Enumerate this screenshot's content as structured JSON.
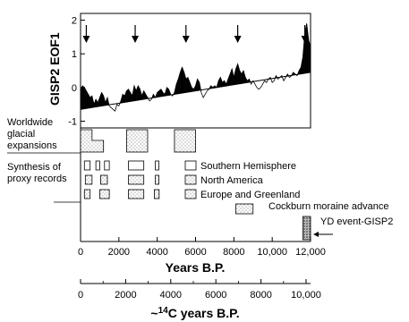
{
  "chart_data": [
    {
      "type": "line",
      "ylabel": "GISP2 EOF1",
      "xlabel": "Years B.P.",
      "xlim": [
        0,
        12000
      ],
      "ylim": [
        -1.2,
        2.2
      ],
      "y_ticks": [
        2,
        1,
        0,
        -1
      ],
      "x_tick_labels": [
        "0",
        "2000",
        "4000",
        "6000",
        "8000",
        "10,000",
        "12,000"
      ],
      "x_tick_values": [
        0,
        2000,
        4000,
        6000,
        8000,
        10000,
        12000
      ],
      "trend_line": {
        "x": [
          0,
          12000
        ],
        "y": [
          -0.65,
          0.45
        ]
      },
      "arrows_x": [
        300,
        2850,
        5500,
        8200,
        11700
      ],
      "series": [
        {
          "x": [
            0,
            100,
            200,
            300,
            400,
            500,
            600,
            700,
            800,
            900,
            1000,
            1100,
            1200,
            1300,
            1400,
            1500,
            1600,
            1700,
            1800,
            1900,
            2000,
            2100,
            2200,
            2300,
            2400,
            2500,
            2600,
            2700,
            2800,
            2900,
            3000,
            3100,
            3200,
            3300,
            3400,
            3500,
            3600,
            3700,
            3800,
            3900,
            4000,
            4100,
            4200,
            4300,
            4400,
            4500,
            4600,
            4700,
            4800,
            4900,
            5000,
            5100,
            5200,
            5300,
            5400,
            5500,
            5600,
            5700,
            5800,
            5900,
            6000,
            6100,
            6200,
            6300,
            6400,
            6500,
            6600,
            6700,
            6800,
            6900,
            7000,
            7100,
            7200,
            7300,
            7400,
            7500,
            7600,
            7700,
            7800,
            7900,
            8000,
            8100,
            8200,
            8300,
            8400,
            8500,
            8600,
            8700,
            8800,
            8900,
            9000,
            9100,
            9200,
            9300,
            9400,
            9500,
            9600,
            9700,
            9800,
            9900,
            10000,
            10100,
            10200,
            10300,
            10400,
            10500,
            10600,
            10700,
            10800,
            10900,
            11000,
            11100,
            11200,
            11300,
            11400,
            11500,
            11600,
            11700,
            11800,
            11900,
            12000
          ],
          "y": [
            -0.1,
            0.05,
            0.0,
            -0.1,
            -0.2,
            -0.3,
            -0.25,
            -0.5,
            -0.35,
            -0.45,
            -0.3,
            -0.15,
            -0.25,
            -0.45,
            -0.3,
            -0.55,
            -0.6,
            -0.65,
            -0.7,
            -0.5,
            -0.55,
            -0.4,
            -0.2,
            -0.25,
            -0.1,
            -0.05,
            -0.15,
            -0.25,
            0.05,
            -0.1,
            0.05,
            -0.05,
            -0.25,
            -0.1,
            -0.2,
            -0.3,
            -0.4,
            -0.35,
            -0.2,
            -0.3,
            -0.15,
            -0.1,
            -0.05,
            -0.15,
            -0.2,
            0.0,
            -0.05,
            -0.2,
            -0.25,
            -0.15,
            0.1,
            0.25,
            0.45,
            0.6,
            0.45,
            0.25,
            0.3,
            0.15,
            0.0,
            -0.05,
            0.05,
            0.25,
            0.15,
            -0.15,
            -0.3,
            -0.2,
            -0.1,
            -0.05,
            0.05,
            0.0,
            0.05,
            0.0,
            0.2,
            0.3,
            0.15,
            0.2,
            0.1,
            0.25,
            0.4,
            0.55,
            0.3,
            0.55,
            0.7,
            0.5,
            0.4,
            0.5,
            0.3,
            0.2,
            0.25,
            0.1,
            0.2,
            0.1,
            0.0,
            -0.05,
            0.0,
            0.1,
            0.2,
            0.15,
            0.25,
            0.3,
            0.15,
            0.2,
            0.35,
            0.25,
            0.3,
            0.35,
            0.2,
            0.3,
            0.4,
            0.3,
            0.35,
            0.45,
            0.4,
            0.35,
            0.5,
            0.6,
            0.9,
            1.6,
            1.9,
            1.4,
            1.2
          ]
        }
      ]
    },
    {
      "type": "table",
      "categories": [
        "Worldwide glacial expansions",
        "Synthesis of proxy records"
      ],
      "glacial_expansions": [
        {
          "start": 0,
          "end": 1200
        },
        {
          "start": 2400,
          "end": 3500
        },
        {
          "start": 4900,
          "end": 6000
        }
      ],
      "proxy_records": {
        "Southern Hemisphere": [
          [
            200,
            500
          ],
          [
            800,
            1000
          ],
          [
            1250,
            1500
          ],
          [
            2500,
            3300
          ],
          [
            3900,
            4050
          ]
        ],
        "North America": [
          [
            250,
            600
          ],
          [
            1050,
            1400
          ],
          [
            2500,
            3300
          ],
          [
            3900,
            4050
          ]
        ],
        "Europe and Greenland": [
          [
            200,
            500
          ],
          [
            1000,
            1500
          ],
          [
            2500,
            3300
          ],
          [
            3850,
            4100
          ]
        ]
      },
      "cockburn": {
        "start": 8100,
        "end": 9000
      },
      "yd_event": {
        "start": 11600,
        "end": 12000
      }
    },
    {
      "type": "table",
      "xlabel": "~14C years B.P.",
      "x_tick_values": [
        0,
        2000,
        4000,
        6000,
        8000,
        10000
      ],
      "x_tick_labels": [
        "0",
        "2000",
        "4000",
        "6000",
        "8000",
        "10,000"
      ]
    }
  ],
  "labels": {
    "side_1": "Worldwide",
    "side_2": "glacial",
    "side_3": "expansions",
    "side_4": "Synthesis of",
    "side_5": "proxy records",
    "legend_sh": "Southern Hemisphere",
    "legend_na": "North America",
    "legend_eg": "Europe and Greenland",
    "cockburn": "Cockburn moraine advance",
    "yd": "YD event-GISP2",
    "c14_prefix": "~",
    "c14_super": "14",
    "c14_rest": "C years B.P."
  }
}
